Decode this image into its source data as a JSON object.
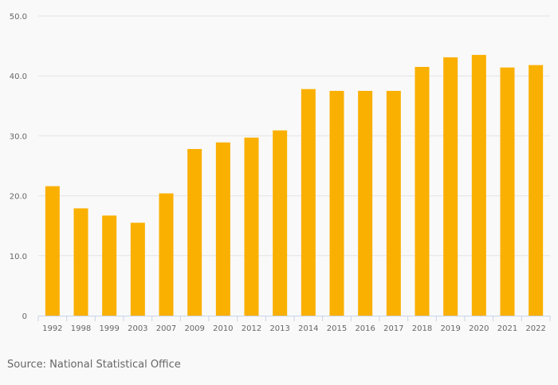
{
  "chart_data": {
    "type": "bar",
    "title": "",
    "xlabel": "",
    "ylabel": "",
    "categories": [
      "1992",
      "1998",
      "1999",
      "2003",
      "2007",
      "2009",
      "2010",
      "2012",
      "2013",
      "2014",
      "2015",
      "2016",
      "2017",
      "2018",
      "2019",
      "2020",
      "2021",
      "2022"
    ],
    "values": [
      21.6,
      17.9,
      16.7,
      15.5,
      20.4,
      27.8,
      28.9,
      29.7,
      30.9,
      37.8,
      37.5,
      37.5,
      37.5,
      41.5,
      43.1,
      43.5,
      41.4,
      41.8
    ],
    "ylim": [
      0,
      50
    ],
    "yticks": [
      "0",
      "10.0",
      "20.0",
      "30.0",
      "40.0",
      "50.0"
    ],
    "ytick_values": [
      0,
      10,
      20,
      30,
      40,
      50
    ],
    "grid": true,
    "bar_color": "#fab000"
  },
  "source": "Source: National Statistical Office"
}
